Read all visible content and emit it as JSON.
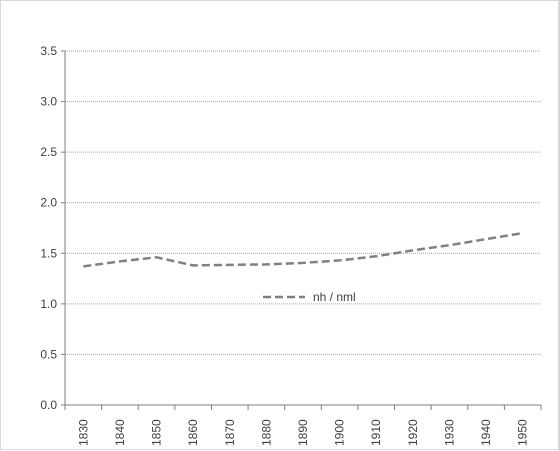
{
  "chart_data": {
    "type": "line",
    "x": [
      1830,
      1840,
      1850,
      1860,
      1870,
      1880,
      1890,
      1900,
      1910,
      1920,
      1930,
      1940,
      1950
    ],
    "x_tick_labels": [
      "1830",
      "1840",
      "1850",
      "1860",
      "1870",
      "1880",
      "1890",
      "1900",
      "1910",
      "1920",
      "1930",
      "1940",
      "1950"
    ],
    "y_tick_labels": [
      "0.0",
      "0.5",
      "1.0",
      "1.5",
      "2.0",
      "2.5",
      "3.0",
      "3.5"
    ],
    "ylim": [
      0,
      3.5
    ],
    "grid": true,
    "legend_position": "center",
    "series": [
      {
        "name": "nh / nml",
        "values": [
          1.37,
          1.42,
          1.46,
          1.38,
          1.385,
          1.39,
          1.405,
          1.43,
          1.47,
          1.53,
          1.58,
          1.64,
          1.7
        ],
        "color": "#808080",
        "dash": "dashed"
      }
    ]
  }
}
